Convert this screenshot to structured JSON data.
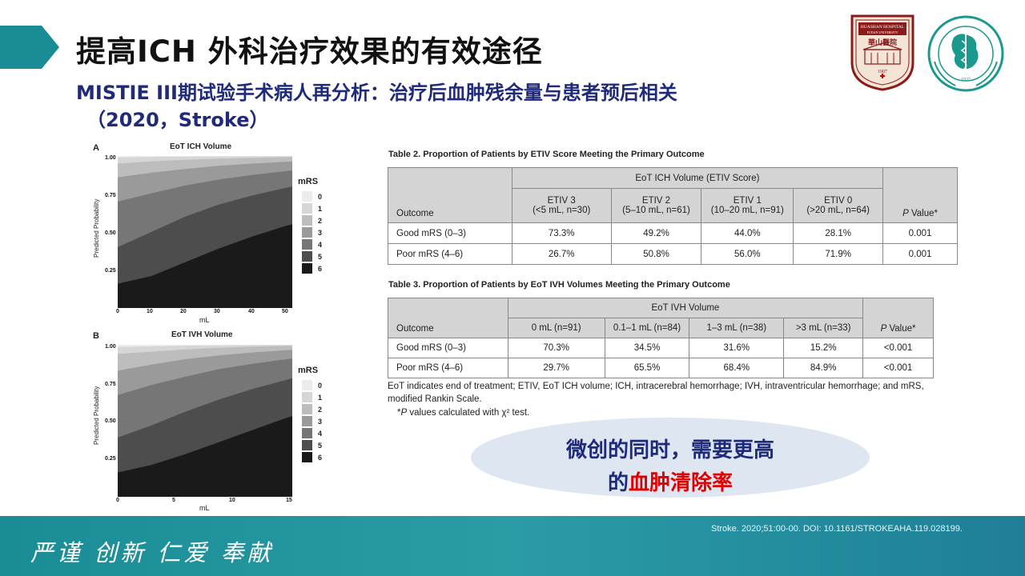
{
  "header": {
    "title": "提高ICH 外科治疗效果的有效途径",
    "subtitle_line1": "MISTIE III期试验手术病人再分析：治疗后血肿残余量与患者预后相关",
    "subtitle_line2": "（2020，Stroke）"
  },
  "logos": {
    "hospital_text": "HUASHAN HOSPITAL",
    "hospital_sub": "FUDAN UNIVERSITY",
    "hospital_cn": "華山醫院",
    "hospital_year": "1907",
    "emblem_year": "1937"
  },
  "colors": {
    "accent": "#1f2a7a",
    "highlight": "#e00000",
    "footer": "#1a8c95"
  },
  "chart_data": [
    {
      "type": "area",
      "panel": "A",
      "title": "EoT ICH Volume",
      "xlabel": "mL",
      "ylabel": "Predicted Probability",
      "x_ticks": [
        "0",
        "10",
        "20",
        "30",
        "40",
        "50"
      ],
      "y_ticks": [
        "1.00",
        "0.75",
        "0.50",
        "0.25"
      ],
      "xlim": [
        0,
        52
      ],
      "ylim": [
        0,
        1
      ],
      "legend_title": "mRS",
      "legend": [
        "0",
        "1",
        "2",
        "3",
        "4",
        "5",
        "6"
      ],
      "colors": [
        "#ebebeb",
        "#d6d6d6",
        "#bdbdbd",
        "#9a9a9a",
        "#767676",
        "#4d4d4d",
        "#1a1a1a"
      ],
      "x": [
        0,
        10,
        20,
        30,
        40,
        50,
        52
      ],
      "cumulative": [
        [
          0.99,
          0.994,
          0.996,
          0.997,
          0.998,
          0.999,
          0.999
        ],
        [
          0.95,
          0.965,
          0.975,
          0.982,
          0.988,
          0.992,
          0.993
        ],
        [
          0.86,
          0.89,
          0.915,
          0.935,
          0.95,
          0.962,
          0.965
        ],
        [
          0.7,
          0.755,
          0.805,
          0.845,
          0.875,
          0.9,
          0.905
        ],
        [
          0.4,
          0.5,
          0.6,
          0.68,
          0.74,
          0.79,
          0.8
        ],
        [
          0.16,
          0.21,
          0.3,
          0.39,
          0.47,
          0.54,
          0.55
        ]
      ]
    },
    {
      "type": "area",
      "panel": "B",
      "title": "EoT IVH Volume",
      "xlabel": "mL",
      "ylabel": "Predicted Probability",
      "x_ticks": [
        "0",
        "5",
        "10",
        "15"
      ],
      "y_ticks": [
        "1.00",
        "0.75",
        "0.50",
        "0.25"
      ],
      "xlim": [
        0,
        15.5
      ],
      "ylim": [
        0,
        1
      ],
      "legend_title": "mRS",
      "legend": [
        "0",
        "1",
        "2",
        "3",
        "4",
        "5",
        "6"
      ],
      "colors": [
        "#ebebeb",
        "#d6d6d6",
        "#bdbdbd",
        "#9a9a9a",
        "#767676",
        "#4d4d4d",
        "#1a1a1a"
      ],
      "x": [
        0,
        3,
        6,
        9,
        12,
        15,
        15.5
      ],
      "cumulative": [
        [
          0.985,
          0.99,
          0.994,
          0.996,
          0.998,
          0.999,
          0.999
        ],
        [
          0.94,
          0.955,
          0.97,
          0.98,
          0.988,
          0.993,
          0.994
        ],
        [
          0.83,
          0.87,
          0.905,
          0.93,
          0.95,
          0.965,
          0.967
        ],
        [
          0.67,
          0.735,
          0.79,
          0.84,
          0.875,
          0.905,
          0.91
        ],
        [
          0.39,
          0.47,
          0.56,
          0.64,
          0.71,
          0.77,
          0.78
        ],
        [
          0.16,
          0.21,
          0.28,
          0.36,
          0.44,
          0.52,
          0.53
        ]
      ]
    },
    {
      "type": "table",
      "caption": "Table 2.    Proportion of Patients by ETIV Score Meeting the Primary Outcome",
      "group_header": "EoT ICH Volume (ETIV Score)",
      "columns": [
        {
          "l1": "ETIV 3",
          "l2": "(<5 mL, n=30)"
        },
        {
          "l1": "ETIV 2",
          "l2": "(5–10 mL, n=61)"
        },
        {
          "l1": "ETIV 1",
          "l2": "(10–20 mL, n=91)"
        },
        {
          "l1": "ETIV 0",
          "l2": "(>20 mL, n=64)"
        }
      ],
      "outcome_header": "Outcome",
      "p_header": "P",
      "p_suffix": " Value*",
      "rows": [
        {
          "label": "Good mRS (0–3)",
          "values": [
            "73.3%",
            "49.2%",
            "44.0%",
            "28.1%"
          ],
          "p": "0.001"
        },
        {
          "label": "Poor mRS (4–6)",
          "values": [
            "26.7%",
            "50.8%",
            "56.0%",
            "71.9%"
          ],
          "p": "0.001"
        }
      ]
    },
    {
      "type": "table",
      "caption": "Table 3.    Proportion of Patients by EoT IVH Volumes Meeting the Primary Outcome",
      "group_header": "EoT IVH Volume",
      "columns": [
        "0 mL (n=91)",
        "0.1–1 mL (n=84)",
        "1–3 mL (n=38)",
        ">3 mL (n=33)"
      ],
      "outcome_header": "Outcome",
      "p_header": "P",
      "p_suffix": " Value*",
      "rows": [
        {
          "label": "Good mRS (0–3)",
          "values": [
            "70.3%",
            "34.5%",
            "31.6%",
            "15.2%"
          ],
          "p": "<0.001"
        },
        {
          "label": "Poor mRS (4–6)",
          "values": [
            "29.7%",
            "65.5%",
            "68.4%",
            "84.9%"
          ],
          "p": "<0.001"
        }
      ]
    }
  ],
  "footnote": {
    "line1": "EoT indicates end of treatment; ETIV, EoT ICH volume; ICH, intracerebral hemorrhage; IVH, intraventricular hemorrhage; and mRS,",
    "line2": "modified Rankin Scale.",
    "line3_p": "P",
    "line3_rest": " values calculated with χ² test."
  },
  "callout": {
    "line1": "微创的同时，需要更高",
    "line2_prefix": "的",
    "line2_red": "血肿清除率"
  },
  "footer": {
    "motto": "严谨  创新  仁爱  奉献",
    "citation": "Stroke. 2020;51:00-00. DOI: 10.1161/STROKEAHA.119.028199."
  }
}
